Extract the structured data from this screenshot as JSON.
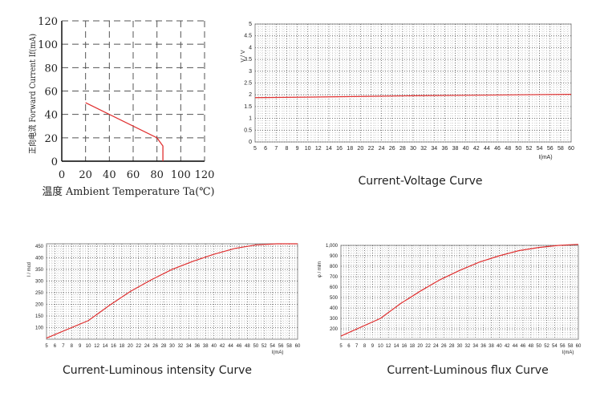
{
  "chart_data": [
    {
      "id": "derating",
      "type": "line",
      "title": "",
      "xlabel": "温度 Ambient Temperature Ta(℃)",
      "ylabel": "正向电流 Forward Current If(mA)",
      "xlim": [
        0,
        120
      ],
      "ylim": [
        0,
        120
      ],
      "x_ticks": [
        "0",
        "20",
        "40",
        "60",
        "80",
        "100",
        "120"
      ],
      "y_ticks": [
        "0",
        "20",
        "40",
        "60",
        "80",
        "100",
        "120"
      ],
      "grid": "dashed",
      "series": [
        {
          "x": [
            20,
            80,
            85,
            85
          ],
          "y": [
            50,
            20,
            13,
            0
          ]
        }
      ],
      "line_color": "#e03030"
    },
    {
      "id": "iv",
      "type": "line",
      "title": "",
      "xlabel": "I(mA)",
      "ylabel": "V / V",
      "xlim": [
        5,
        60
      ],
      "ylim": [
        0,
        5
      ],
      "x_ticks": [
        "5",
        "6",
        "7",
        "8",
        "9",
        "10",
        "12",
        "14",
        "16",
        "18",
        "20",
        "22",
        "24",
        "26",
        "28",
        "30",
        "32",
        "34",
        "36",
        "38",
        "40",
        "42",
        "44",
        "46",
        "48",
        "50",
        "52",
        "54",
        "56",
        "58",
        "60"
      ],
      "y_ticks": [
        "0",
        "0.5",
        "1",
        "1.5",
        "2",
        "2.5",
        "3",
        "3.5",
        "4",
        "4.5",
        "5"
      ],
      "grid": "dotted",
      "series": [
        {
          "x": [
            5,
            10,
            20,
            30,
            40,
            50,
            60
          ],
          "y": [
            1.88,
            1.9,
            1.93,
            1.96,
            1.98,
            2.0,
            2.02
          ]
        }
      ],
      "caption": "Current-Voltage Curve",
      "line_color": "#e03030"
    },
    {
      "id": "intensity",
      "type": "line",
      "title": "",
      "xlabel": "I(mA)",
      "ylabel": "I / mcd",
      "xlim": [
        5,
        60
      ],
      "ylim": [
        50,
        460
      ],
      "x_ticks": [
        "5",
        "6",
        "7",
        "8",
        "9",
        "10",
        "12",
        "14",
        "16",
        "18",
        "20",
        "22",
        "24",
        "26",
        "28",
        "30",
        "32",
        "34",
        "36",
        "38",
        "40",
        "42",
        "44",
        "46",
        "48",
        "50",
        "52",
        "54",
        "56",
        "58",
        "60"
      ],
      "y_ticks": [
        "100",
        "150",
        "200",
        "250",
        "300",
        "350",
        "400",
        "450"
      ],
      "grid": "dotted",
      "series": [
        {
          "x": [
            5,
            10,
            15,
            20,
            25,
            30,
            35,
            40,
            45,
            50,
            55,
            60
          ],
          "y": [
            55,
            130,
            195,
            255,
            305,
            350,
            385,
            415,
            440,
            455,
            460,
            460
          ]
        }
      ],
      "caption": "Current-Luminous intensity Curve",
      "line_color": "#e03030"
    },
    {
      "id": "flux",
      "type": "line",
      "title": "",
      "xlabel": "I(mA)",
      "ylabel": "φ / mlm",
      "xlim": [
        5,
        60
      ],
      "ylim": [
        100,
        1000
      ],
      "x_ticks": [
        "5",
        "6",
        "7",
        "8",
        "9",
        "10",
        "12",
        "14",
        "16",
        "18",
        "20",
        "22",
        "24",
        "26",
        "28",
        "30",
        "32",
        "34",
        "36",
        "38",
        "40",
        "42",
        "44",
        "46",
        "48",
        "50",
        "52",
        "54",
        "56",
        "58",
        "60"
      ],
      "y_ticks": [
        "200",
        "300",
        "400",
        "500",
        "600",
        "700",
        "800",
        "900",
        "1,000"
      ],
      "grid": "dotted",
      "series": [
        {
          "x": [
            5,
            10,
            15,
            20,
            25,
            30,
            35,
            40,
            45,
            50,
            55,
            60
          ],
          "y": [
            130,
            300,
            440,
            560,
            670,
            760,
            840,
            900,
            950,
            980,
            1000,
            1010
          ]
        }
      ],
      "caption": "Current-Luminous flux Curve",
      "line_color": "#e03030"
    }
  ]
}
